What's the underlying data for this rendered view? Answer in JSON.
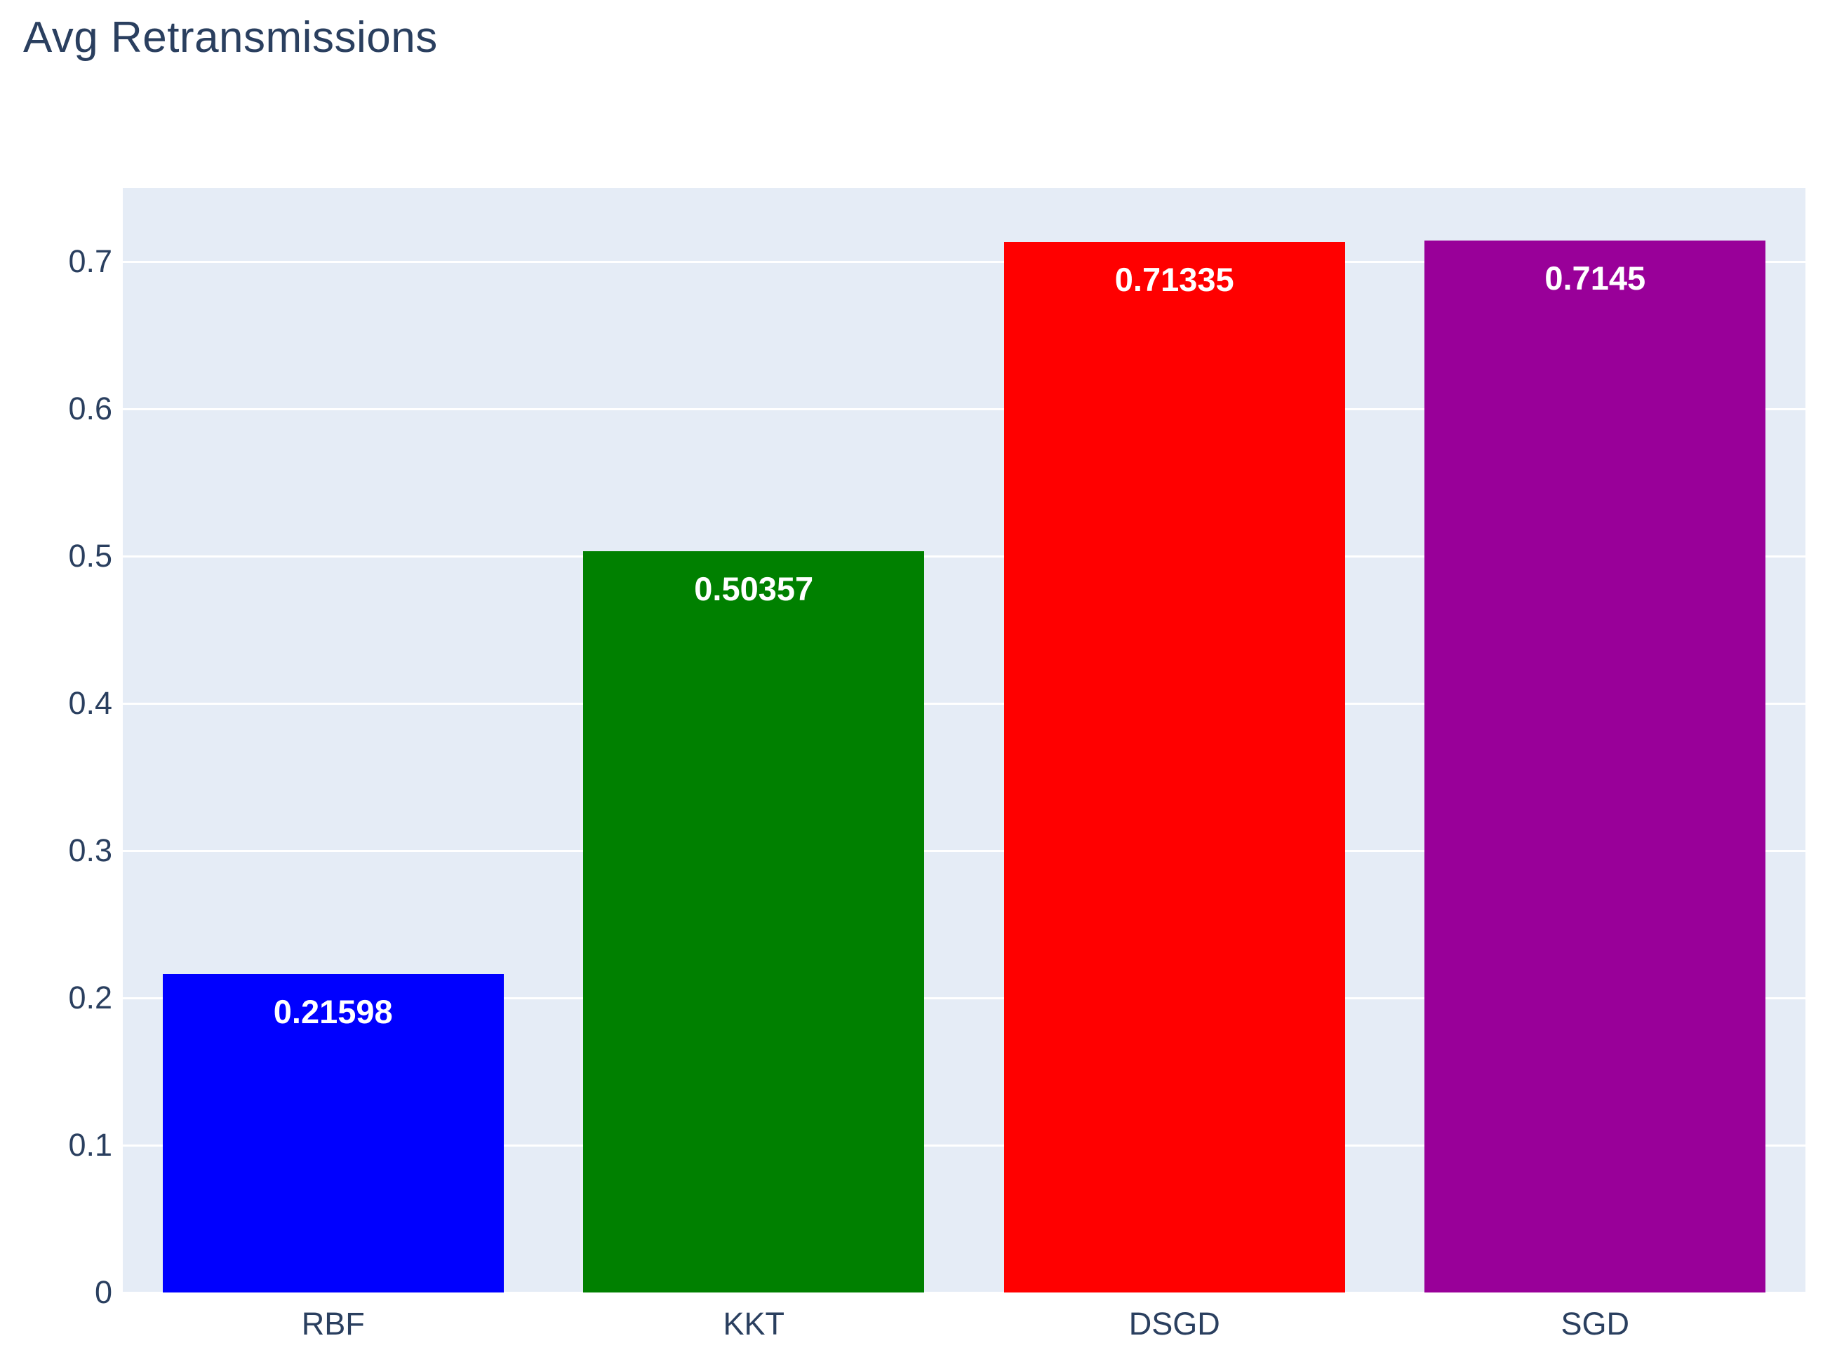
{
  "page": {
    "background_color": "#ffffff"
  },
  "chart_data": {
    "type": "bar",
    "title": "Avg Retransmissions",
    "xlabel": "",
    "ylabel": "",
    "categories": [
      "RBF",
      "KKT",
      "DSGD",
      "SGD"
    ],
    "values": [
      0.21598,
      0.50357,
      0.71335,
      0.7145
    ],
    "value_labels": [
      "0.21598",
      "0.50357",
      "0.71335",
      "0.7145"
    ],
    "bar_colors": [
      "#0000ff",
      "#008000",
      "#ff0000",
      "#990099"
    ],
    "ylim": [
      0,
      0.75
    ],
    "yticks": [
      0,
      0.1,
      0.2,
      0.3,
      0.4,
      0.5,
      0.6,
      0.7
    ],
    "ytick_labels": [
      "0",
      "0.1",
      "0.2",
      "0.3",
      "0.4",
      "0.5",
      "0.6",
      "0.7"
    ],
    "grid": true,
    "legend": false,
    "colors": {
      "plot_background": "#e5ecf6",
      "gridline": "#ffffff",
      "axis_text": "#2a3f5f",
      "title_text": "#2a3f5f",
      "bar_label_text": "#ffffff"
    }
  }
}
